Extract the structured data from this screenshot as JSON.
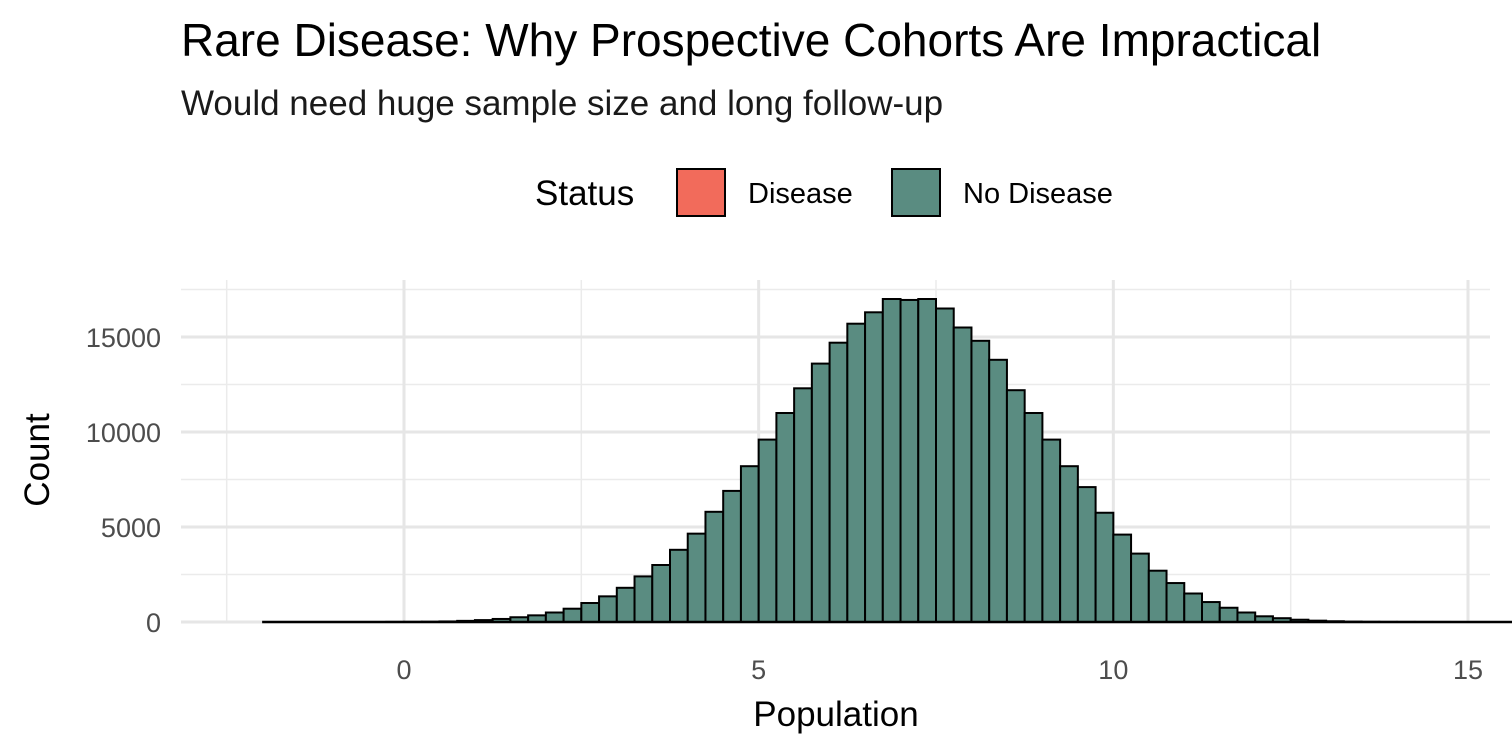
{
  "chart_data": {
    "type": "bar",
    "title": "Rare Disease: Why Prospective Cohorts Are Impractical",
    "subtitle": "Would need huge sample size and long follow-up",
    "xlabel": "Population",
    "ylabel": "Count",
    "xlim": [
      -2.5,
      15
    ],
    "ylim": [
      0,
      17500
    ],
    "x_ticks": [
      0,
      5,
      10,
      15
    ],
    "x_tick_labels": [
      "0",
      "5",
      "10",
      "15"
    ],
    "y_ticks": [
      0,
      5000,
      10000,
      15000
    ],
    "y_tick_labels": [
      "0",
      "5000",
      "10000",
      "15000"
    ],
    "grid": true,
    "legend": {
      "title": "Status",
      "position": "top",
      "entries": [
        {
          "label": "Disease",
          "color": "#F26B5B"
        },
        {
          "label": "No Disease",
          "color": "#5A8C81"
        }
      ]
    },
    "bin_width": 0.25,
    "bin_start": -2.25,
    "series": [
      {
        "name": "No Disease",
        "color": "#5A8C81",
        "values": [
          0,
          0,
          0,
          0,
          0,
          0,
          0,
          0,
          5,
          8,
          15,
          30,
          60,
          100,
          160,
          250,
          350,
          500,
          700,
          1000,
          1350,
          1800,
          2400,
          3000,
          3800,
          4650,
          5800,
          6900,
          8200,
          9600,
          11000,
          12300,
          13600,
          14700,
          15700,
          16300,
          17000,
          16950,
          17000,
          16500,
          15500,
          14800,
          13800,
          12200,
          11000,
          9600,
          8200,
          7100,
          5750,
          4600,
          3600,
          2700,
          2050,
          1500,
          1050,
          750,
          500,
          300,
          200,
          120,
          70,
          40,
          20,
          10,
          5,
          3,
          2,
          1,
          0,
          0,
          0,
          0,
          0,
          0,
          0,
          0,
          0,
          0,
          0,
          0,
          0,
          0,
          0,
          0,
          0,
          0,
          0
        ]
      },
      {
        "name": "Disease",
        "color": "#F26B5B",
        "values": [
          0,
          0,
          0,
          0,
          0,
          0,
          0,
          0,
          0,
          0,
          0,
          0,
          0,
          0,
          0,
          0,
          0,
          0,
          0,
          0,
          0,
          0,
          0,
          0,
          0,
          0,
          0,
          0,
          0,
          0,
          0,
          0,
          0,
          0,
          0,
          0,
          0,
          0,
          0,
          0,
          0,
          0,
          0,
          0,
          0,
          0,
          0,
          0,
          0,
          0,
          0,
          0,
          0,
          0,
          0,
          0,
          0,
          0,
          0,
          0,
          0,
          0,
          0,
          0,
          0,
          0,
          0,
          0,
          0,
          0,
          0,
          0,
          0,
          0,
          0,
          0,
          0,
          0,
          0,
          0,
          0,
          0,
          0,
          0,
          0,
          0,
          0
        ]
      }
    ]
  }
}
